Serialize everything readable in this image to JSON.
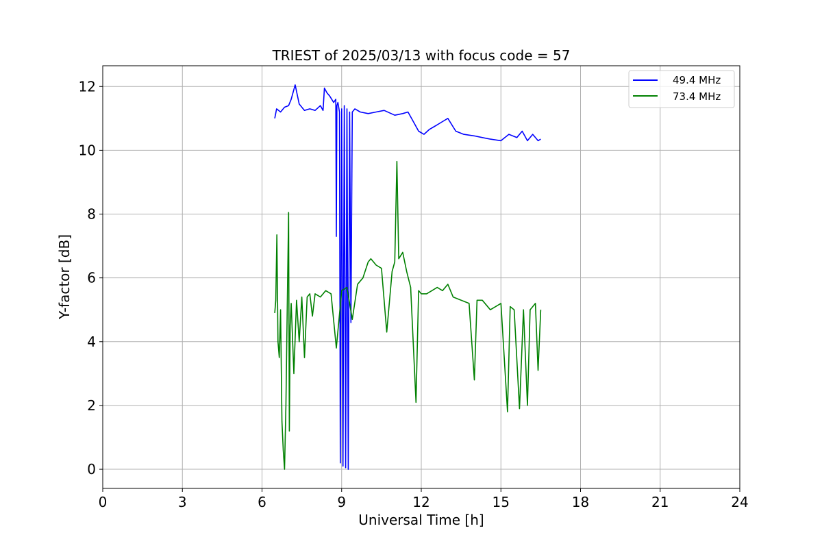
{
  "chart_data": {
    "type": "line",
    "title": "TRIEST of 2025/03/13 with focus code = 57",
    "xlabel": "Universal Time [h]",
    "ylabel": "Y-factor [dB]",
    "xlim": [
      0,
      24
    ],
    "ylim": [
      -0.6,
      12.65
    ],
    "xticks": [
      0,
      3,
      6,
      9,
      12,
      15,
      18,
      21,
      24
    ],
    "yticks": [
      0,
      2,
      4,
      6,
      8,
      10,
      12
    ],
    "grid": true,
    "legend_position": "top-right",
    "series": [
      {
        "name": "49.4 MHz",
        "color": "#0000ff",
        "x": [
          6.48,
          6.55,
          6.7,
          6.85,
          7.0,
          7.1,
          7.25,
          7.4,
          7.6,
          7.8,
          8.0,
          8.2,
          8.3,
          8.35,
          8.45,
          8.55,
          8.7,
          8.78,
          8.8,
          8.82,
          8.86,
          8.92,
          8.95,
          9.0,
          9.05,
          9.1,
          9.15,
          9.2,
          9.25,
          9.3,
          9.35,
          9.4,
          9.5,
          9.7,
          10.0,
          10.3,
          10.6,
          11.0,
          11.3,
          11.5,
          11.7,
          11.9,
          12.1,
          12.3,
          12.5,
          12.8,
          13.0,
          13.3,
          13.6,
          14.0,
          14.3,
          14.6,
          15.0,
          15.3,
          15.6,
          15.8,
          16.0,
          16.2,
          16.4,
          16.5
        ],
        "values": [
          11.0,
          11.3,
          11.2,
          11.35,
          11.4,
          11.6,
          12.05,
          11.45,
          11.25,
          11.3,
          11.25,
          11.4,
          11.25,
          11.95,
          11.8,
          11.7,
          11.5,
          11.6,
          7.3,
          11.4,
          11.5,
          11.2,
          0.2,
          11.3,
          0.1,
          11.4,
          0.05,
          11.3,
          0.0,
          11.2,
          4.6,
          11.2,
          11.3,
          11.2,
          11.15,
          11.2,
          11.25,
          11.1,
          11.15,
          11.2,
          10.9,
          10.6,
          10.5,
          10.65,
          10.75,
          10.9,
          11.0,
          10.6,
          10.5,
          10.45,
          10.4,
          10.35,
          10.3,
          10.5,
          10.4,
          10.6,
          10.3,
          10.5,
          10.3,
          10.35
        ]
      },
      {
        "name": "73.4 MHz",
        "color": "#008000",
        "x": [
          6.48,
          6.52,
          6.56,
          6.6,
          6.65,
          6.7,
          6.75,
          6.8,
          6.85,
          6.9,
          6.95,
          7.0,
          7.03,
          7.06,
          7.1,
          7.2,
          7.3,
          7.4,
          7.5,
          7.6,
          7.7,
          7.8,
          7.9,
          8.0,
          8.2,
          8.4,
          8.6,
          8.8,
          9.0,
          9.2,
          9.4,
          9.6,
          9.8,
          10.0,
          10.1,
          10.3,
          10.5,
          10.7,
          10.9,
          11.0,
          11.08,
          11.15,
          11.3,
          11.45,
          11.6,
          11.8,
          11.9,
          12.0,
          12.2,
          12.4,
          12.6,
          12.8,
          13.0,
          13.2,
          13.5,
          13.8,
          14.0,
          14.1,
          14.3,
          14.6,
          15.0,
          15.25,
          15.35,
          15.5,
          15.7,
          15.85,
          16.0,
          16.1,
          16.3,
          16.4,
          16.5
        ],
        "values": [
          4.9,
          5.3,
          7.35,
          4.0,
          3.5,
          5.0,
          1.5,
          0.6,
          0.0,
          2.0,
          5.0,
          8.05,
          1.2,
          4.5,
          5.2,
          3.0,
          5.3,
          4.0,
          5.4,
          3.5,
          5.4,
          5.5,
          4.8,
          5.5,
          5.4,
          5.6,
          5.5,
          3.8,
          5.6,
          5.7,
          4.7,
          5.8,
          6.0,
          6.5,
          6.6,
          6.4,
          6.3,
          4.3,
          6.2,
          6.5,
          9.65,
          6.6,
          6.8,
          6.2,
          5.7,
          2.1,
          5.6,
          5.5,
          5.5,
          5.6,
          5.7,
          5.6,
          5.8,
          5.4,
          5.3,
          5.2,
          2.8,
          5.3,
          5.3,
          5.0,
          5.2,
          1.8,
          5.1,
          5.0,
          1.9,
          5.0,
          2.0,
          5.0,
          5.2,
          3.1,
          5.0
        ]
      }
    ]
  }
}
